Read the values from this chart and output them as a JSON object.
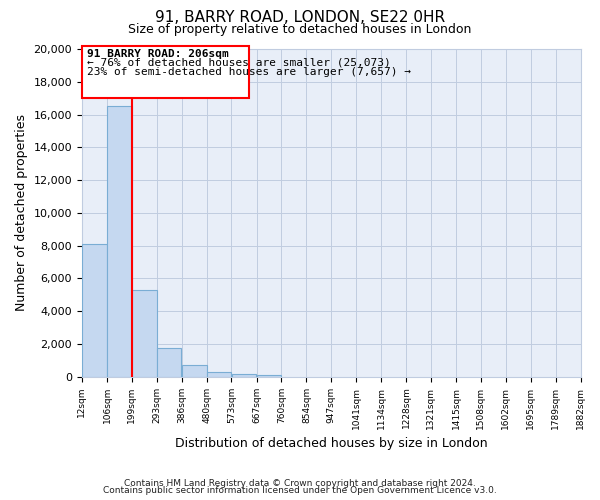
{
  "title": "91, BARRY ROAD, LONDON, SE22 0HR",
  "subtitle": "Size of property relative to detached houses in London",
  "xlabel": "Distribution of detached houses by size in London",
  "ylabel": "Number of detached properties",
  "bar_edges": [
    12,
    106,
    199,
    293,
    386,
    480,
    573,
    667,
    760,
    854,
    947,
    1041,
    1134,
    1228,
    1321,
    1415,
    1508,
    1602,
    1695,
    1789,
    1882
  ],
  "bar_heights": [
    8100,
    16500,
    5300,
    1750,
    700,
    320,
    170,
    130,
    0,
    0,
    0,
    0,
    0,
    0,
    0,
    0,
    0,
    0,
    0,
    0
  ],
  "bar_color": "#c5d8f0",
  "bar_edgecolor": "#7aadd4",
  "property_line_x": 199,
  "property_line_color": "red",
  "annotation_line1": "91 BARRY ROAD: 206sqm",
  "annotation_line2": "← 76% of detached houses are smaller (25,073)",
  "annotation_line3": "23% of semi-detached houses are larger (7,657) →",
  "ylim": [
    0,
    20000
  ],
  "yticks": [
    0,
    2000,
    4000,
    6000,
    8000,
    10000,
    12000,
    14000,
    16000,
    18000,
    20000
  ],
  "tick_labels": [
    "12sqm",
    "106sqm",
    "199sqm",
    "293sqm",
    "386sqm",
    "480sqm",
    "573sqm",
    "667sqm",
    "760sqm",
    "854sqm",
    "947sqm",
    "1041sqm",
    "1134sqm",
    "1228sqm",
    "1321sqm",
    "1415sqm",
    "1508sqm",
    "1602sqm",
    "1695sqm",
    "1789sqm",
    "1882sqm"
  ],
  "footer1": "Contains HM Land Registry data © Crown copyright and database right 2024.",
  "footer2": "Contains public sector information licensed under the Open Government Licence v3.0.",
  "plot_bg_color": "#e8eef8",
  "fig_bg_color": "#ffffff",
  "grid_color": "#c0cce0"
}
